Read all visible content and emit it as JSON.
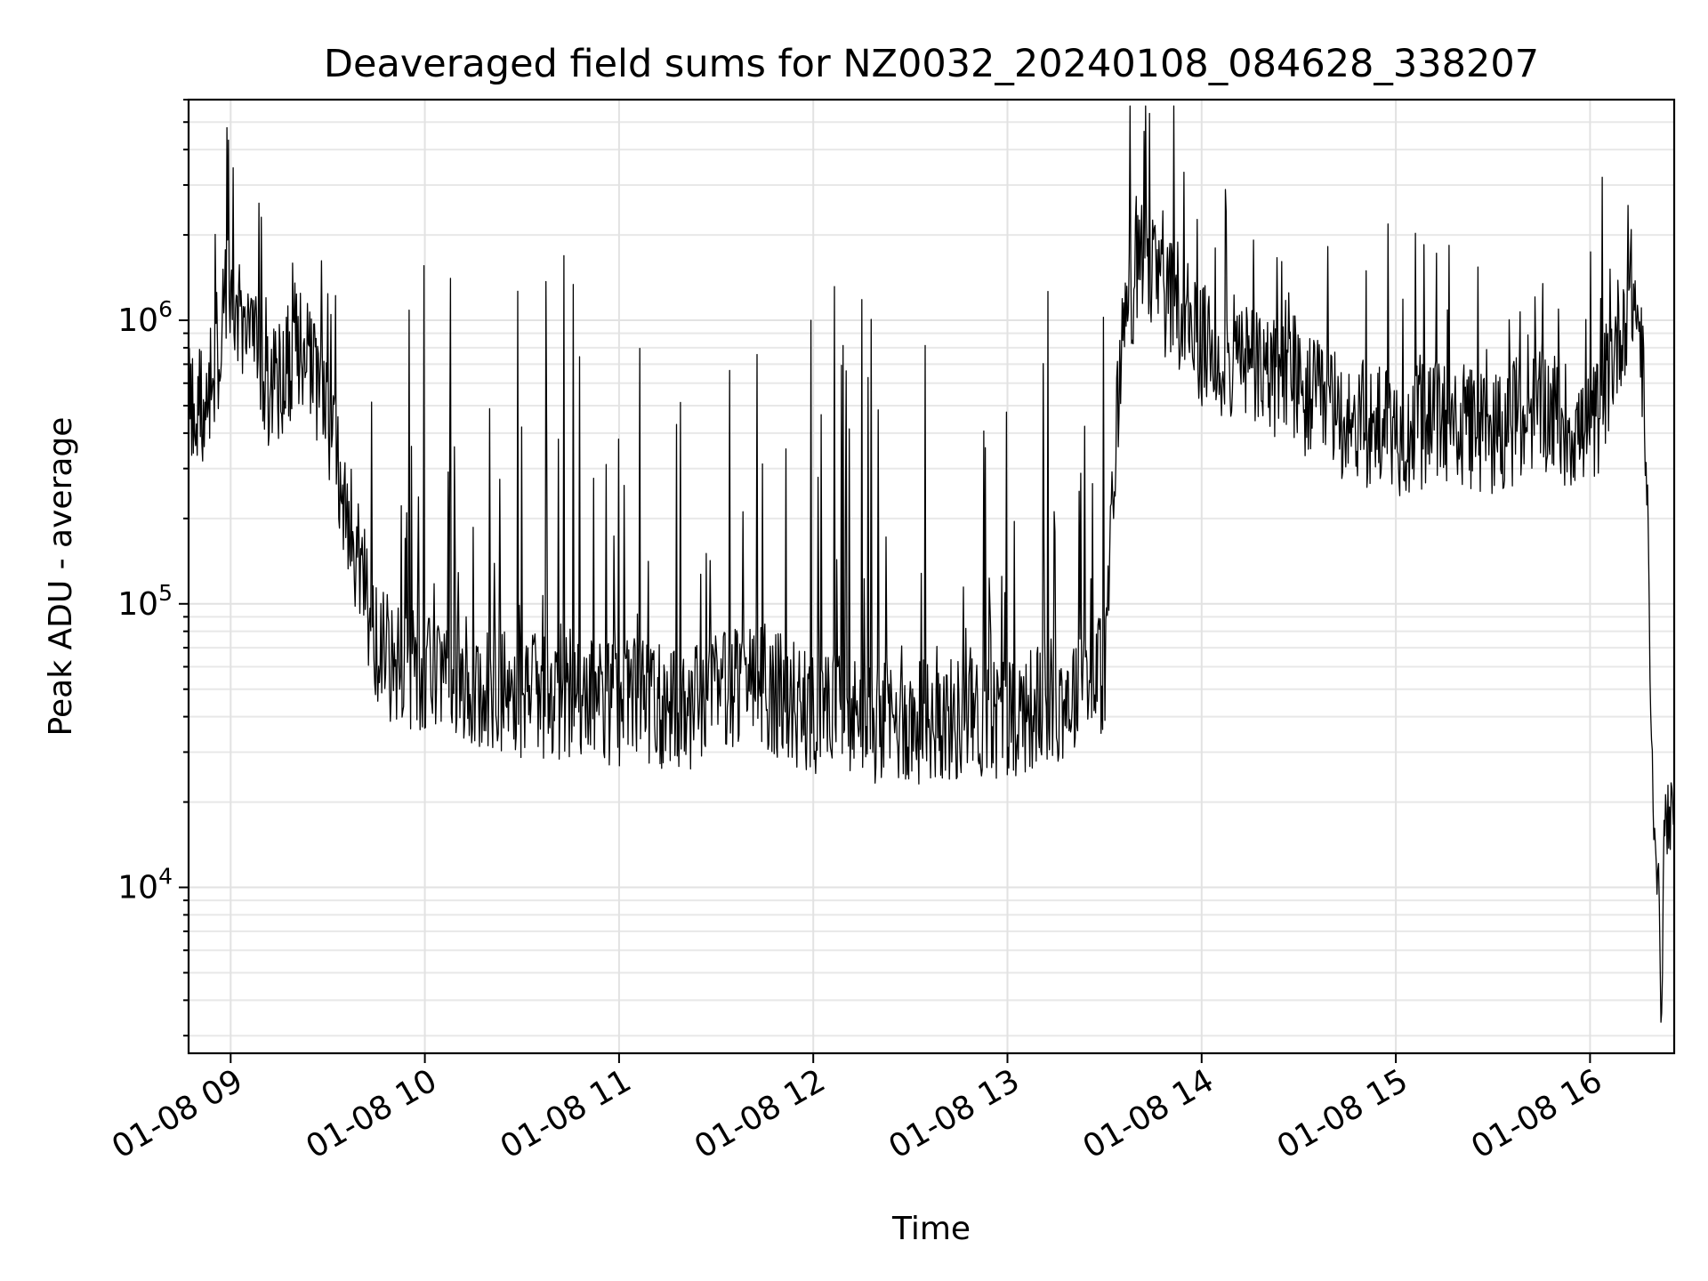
{
  "chart_data": {
    "type": "line",
    "title": "Deaveraged field sums for NZ0032_20240108_084628_338207",
    "xlabel": "Time",
    "ylabel": "Peak ADU - average",
    "yscale": "log",
    "grid": "both (major and minor)",
    "legend": "none",
    "line_color": "#000000",
    "xlim": [
      "2024-01-08 08:47",
      "2024-01-08 16:26"
    ],
    "ylim": [
      2600,
      6000000
    ],
    "x_ticks": [
      "01-08 09",
      "01-08 10",
      "01-08 11",
      "01-08 12",
      "01-08 13",
      "01-08 14",
      "01-08 15",
      "01-08 16"
    ],
    "y_ticks": [
      {
        "base": "10",
        "exp": "4",
        "value": 10000
      },
      {
        "base": "10",
        "exp": "5",
        "value": 100000
      },
      {
        "base": "10",
        "exp": "6",
        "value": 1000000
      }
    ],
    "series": [
      {
        "points": [
          [
            "2024-01-08 08:47",
            500000
          ],
          [
            "2024-01-08 08:52",
            480000
          ],
          [
            "2024-01-08 08:57",
            900000
          ],
          [
            "2024-01-08 09:00",
            1300000
          ],
          [
            "2024-01-08 09:05",
            900000
          ],
          [
            "2024-01-08 09:10",
            600000
          ],
          [
            "2024-01-08 09:15",
            550000
          ],
          [
            "2024-01-08 09:20",
            800000
          ],
          [
            "2024-01-08 09:25",
            650000
          ],
          [
            "2024-01-08 09:30",
            450000
          ],
          [
            "2024-01-08 09:35",
            250000
          ],
          [
            "2024-01-08 09:40",
            130000
          ],
          [
            "2024-01-08 09:45",
            75000
          ],
          [
            "2024-01-08 09:50",
            60000
          ],
          [
            "2024-01-08 10:00",
            55000
          ],
          [
            "2024-01-08 10:30",
            48000
          ],
          [
            "2024-01-08 11:00",
            45000
          ],
          [
            "2024-01-08 11:20",
            42000
          ],
          [
            "2024-01-08 11:40",
            55000
          ],
          [
            "2024-01-08 12:00",
            40000
          ],
          [
            "2024-01-08 12:30",
            38000
          ],
          [
            "2024-01-08 13:00",
            40000
          ],
          [
            "2024-01-08 13:20",
            48000
          ],
          [
            "2024-01-08 13:30",
            58000
          ],
          [
            "2024-01-08 13:35",
            800000
          ],
          [
            "2024-01-08 13:40",
            1600000
          ],
          [
            "2024-01-08 13:45",
            1500000
          ],
          [
            "2024-01-08 13:50",
            1100000
          ],
          [
            "2024-01-08 14:00",
            800000
          ],
          [
            "2024-01-08 14:15",
            700000
          ],
          [
            "2024-01-08 14:30",
            550000
          ],
          [
            "2024-01-08 14:45",
            450000
          ],
          [
            "2024-01-08 15:00",
            400000
          ],
          [
            "2024-01-08 15:15",
            430000
          ],
          [
            "2024-01-08 15:30",
            400000
          ],
          [
            "2024-01-08 15:45",
            500000
          ],
          [
            "2024-01-08 16:00",
            380000
          ],
          [
            "2024-01-08 16:05",
            600000
          ],
          [
            "2024-01-08 16:10",
            1000000
          ],
          [
            "2024-01-08 16:13",
            1300000
          ],
          [
            "2024-01-08 16:16",
            800000
          ],
          [
            "2024-01-08 16:18",
            150000
          ],
          [
            "2024-01-08 16:19",
            30000
          ],
          [
            "2024-01-08 16:20",
            16000
          ],
          [
            "2024-01-08 16:21",
            11000
          ],
          [
            "2024-01-08 16:22",
            3600
          ],
          [
            "2024-01-08 16:23",
            17000
          ],
          [
            "2024-01-08 16:26",
            18000
          ]
        ]
      }
    ]
  }
}
